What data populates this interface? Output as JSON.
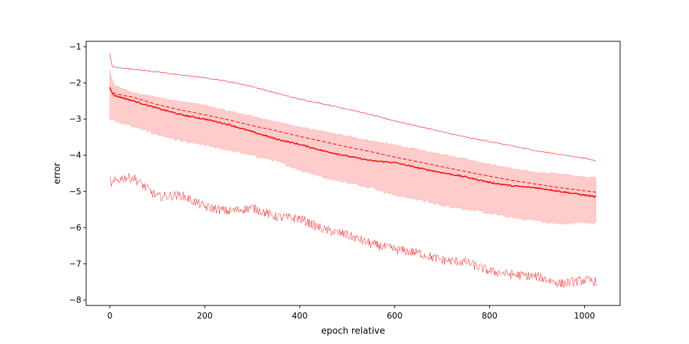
{
  "chart_data": {
    "type": "line",
    "title": "",
    "xlabel": "epoch relative",
    "ylabel": "error",
    "xlim": [
      -50,
      1075
    ],
    "ylim": [
      -8.15,
      -0.85
    ],
    "xticks": [
      0,
      200,
      400,
      600,
      800,
      1000
    ],
    "yticks": [
      -8,
      -7,
      -6,
      -5,
      -4,
      -3,
      -2,
      -1
    ],
    "xtick_labels": [
      "0",
      "200",
      "400",
      "600",
      "800",
      "1000"
    ],
    "ytick_labels": [
      "−8",
      "−7",
      "−6",
      "−5",
      "−4",
      "−3",
      "−2",
      "−1"
    ],
    "grid": false,
    "legend": "none",
    "color": "#ff0000",
    "band_color": "#ffcccc",
    "series": [
      {
        "role": "max",
        "style": "thin",
        "x": [
          0,
          5,
          10,
          50,
          100,
          150,
          200,
          250,
          300,
          350,
          400,
          450,
          500,
          550,
          600,
          650,
          700,
          750,
          800,
          850,
          900,
          950,
          1000,
          1025
        ],
        "y": [
          -1.2,
          -1.55,
          -1.57,
          -1.62,
          -1.7,
          -1.78,
          -1.86,
          -1.96,
          -2.1,
          -2.28,
          -2.45,
          -2.58,
          -2.72,
          -2.88,
          -3.05,
          -3.2,
          -3.35,
          -3.5,
          -3.62,
          -3.75,
          -3.88,
          -3.98,
          -4.08,
          -4.15
        ]
      },
      {
        "role": "upper_band",
        "x": [
          0,
          5,
          10,
          50,
          100,
          150,
          200,
          250,
          300,
          350,
          400,
          450,
          500,
          550,
          600,
          650,
          700,
          750,
          800,
          850,
          900,
          950,
          1000,
          1025
        ],
        "y": [
          -1.65,
          -1.95,
          -2.08,
          -2.28,
          -2.4,
          -2.52,
          -2.62,
          -2.78,
          -2.92,
          -3.08,
          -3.22,
          -3.35,
          -3.48,
          -3.6,
          -3.72,
          -3.85,
          -3.98,
          -4.1,
          -4.25,
          -4.38,
          -4.48,
          -4.52,
          -4.6,
          -4.62
        ]
      },
      {
        "role": "lower_band",
        "x": [
          0,
          5,
          10,
          50,
          100,
          150,
          200,
          250,
          300,
          350,
          400,
          450,
          500,
          550,
          600,
          650,
          700,
          750,
          800,
          850,
          900,
          950,
          1000,
          1025
        ],
        "y": [
          -3.05,
          -2.98,
          -3.05,
          -3.2,
          -3.42,
          -3.6,
          -3.72,
          -3.85,
          -4.0,
          -4.15,
          -4.4,
          -4.6,
          -4.75,
          -4.88,
          -5.1,
          -5.22,
          -5.38,
          -5.48,
          -5.6,
          -5.72,
          -5.8,
          -5.9,
          -5.85,
          -5.88
        ]
      },
      {
        "role": "mean",
        "style": "dashed",
        "x": [
          0,
          5,
          10,
          50,
          100,
          150,
          200,
          250,
          300,
          350,
          400,
          450,
          500,
          550,
          600,
          650,
          700,
          750,
          800,
          850,
          900,
          950,
          1000,
          1025
        ],
        "y": [
          -2.15,
          -2.27,
          -2.3,
          -2.4,
          -2.6,
          -2.75,
          -2.88,
          -3.02,
          -3.18,
          -3.32,
          -3.48,
          -3.62,
          -3.77,
          -3.9,
          -4.05,
          -4.18,
          -4.32,
          -4.45,
          -4.58,
          -4.7,
          -4.8,
          -4.9,
          -4.98,
          -5.02
        ]
      },
      {
        "role": "median",
        "style": "solid",
        "x": [
          0,
          5,
          10,
          50,
          100,
          150,
          200,
          250,
          300,
          350,
          400,
          450,
          500,
          550,
          600,
          650,
          700,
          750,
          800,
          850,
          900,
          950,
          1000,
          1025
        ],
        "y": [
          -2.1,
          -2.3,
          -2.35,
          -2.5,
          -2.7,
          -2.88,
          -3.0,
          -3.15,
          -3.35,
          -3.55,
          -3.7,
          -3.88,
          -4.02,
          -4.15,
          -4.2,
          -4.35,
          -4.48,
          -4.6,
          -4.75,
          -4.85,
          -4.9,
          -5.0,
          -5.1,
          -5.15
        ]
      },
      {
        "role": "min",
        "style": "thin-noisy",
        "x": [
          0,
          5,
          10,
          30,
          50,
          100,
          150,
          200,
          250,
          300,
          350,
          400,
          450,
          500,
          550,
          600,
          650,
          700,
          750,
          800,
          850,
          900,
          950,
          1000,
          1025
        ],
        "y": [
          -4.65,
          -4.85,
          -4.72,
          -4.62,
          -4.62,
          -5.15,
          -5.1,
          -5.42,
          -5.55,
          -5.45,
          -5.7,
          -5.75,
          -6.05,
          -6.2,
          -6.45,
          -6.6,
          -6.7,
          -6.9,
          -6.95,
          -7.2,
          -7.3,
          -7.35,
          -7.55,
          -7.45,
          -7.5
        ]
      }
    ]
  }
}
